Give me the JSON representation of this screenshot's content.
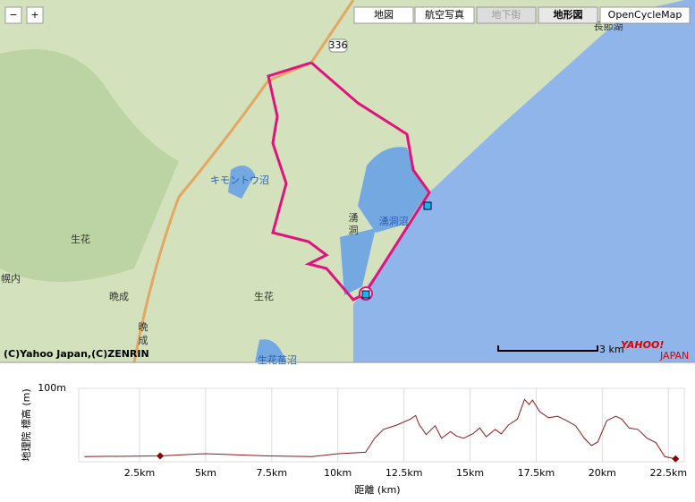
{
  "map": {
    "zoom_out": "−",
    "zoom_in": "+",
    "map_types": [
      "地図",
      "航空写真",
      "地下街",
      "地形図",
      "OpenCycleMap"
    ],
    "route_number": "336",
    "labels": [
      "キモントウ沼",
      "湧洞沼",
      "湧",
      "洞",
      "生花",
      "生花",
      "晩成",
      "晩",
      "成",
      "幌内",
      "生花苗沼",
      "長節湖"
    ],
    "copyright": "(C)Yahoo Japan,(C)ZENRIN",
    "scale": "3 km",
    "logo": "YAHOO!",
    "logo_sub": "JAPAN"
  },
  "chart_data": {
    "type": "line",
    "ylabel": "地理院 標高 (m)",
    "xlabel": "距離 (km)",
    "xlim": [
      0.2,
      23.1
    ],
    "ylim": [
      0,
      100
    ],
    "xticks": [
      {
        "value": 2.5,
        "label": "2.5km"
      },
      {
        "value": 5,
        "label": "5km"
      },
      {
        "value": 7.5,
        "label": "7.5km"
      },
      {
        "value": 10,
        "label": "10km"
      },
      {
        "value": 12.5,
        "label": "12.5km"
      },
      {
        "value": 15,
        "label": "15km"
      },
      {
        "value": 17.5,
        "label": "17.5km"
      },
      {
        "value": 20,
        "label": "20km"
      },
      {
        "value": 22.5,
        "label": "22.5km"
      }
    ],
    "yticks": [
      {
        "value": 100,
        "label": "100m"
      }
    ],
    "grid": true,
    "series": [
      {
        "name": "標高",
        "color": "#8b1a1a",
        "x": [
          0.41,
          3.28,
          4.97,
          7.33,
          9.02,
          10.03,
          11.05,
          11.39,
          11.72,
          12.23,
          12.74,
          12.94,
          13.07,
          13.34,
          13.68,
          13.92,
          14.26,
          14.49,
          14.76,
          15.1,
          15.37,
          15.61,
          15.95,
          16.18,
          16.45,
          16.79,
          17.06,
          17.23,
          17.36,
          17.64,
          17.97,
          18.31,
          18.65,
          18.99,
          19.32,
          19.59,
          19.83,
          20.17,
          20.51,
          20.74,
          21.01,
          21.35,
          21.69,
          22.03,
          22.36,
          22.77
        ],
        "values": [
          7,
          8,
          11,
          8,
          7,
          11,
          13,
          32,
          44,
          50,
          58,
          63,
          51,
          37,
          49,
          32,
          41,
          35,
          32,
          38,
          46,
          34,
          44,
          38,
          50,
          58,
          85,
          78,
          84,
          68,
          60,
          62,
          56,
          49,
          32,
          22,
          27,
          56,
          62,
          58,
          46,
          44,
          32,
          26,
          7,
          4
        ]
      }
    ],
    "markers": {
      "color": "#8b0000",
      "x": [
        3.28,
        22.77
      ],
      "values": [
        8,
        4
      ]
    }
  }
}
